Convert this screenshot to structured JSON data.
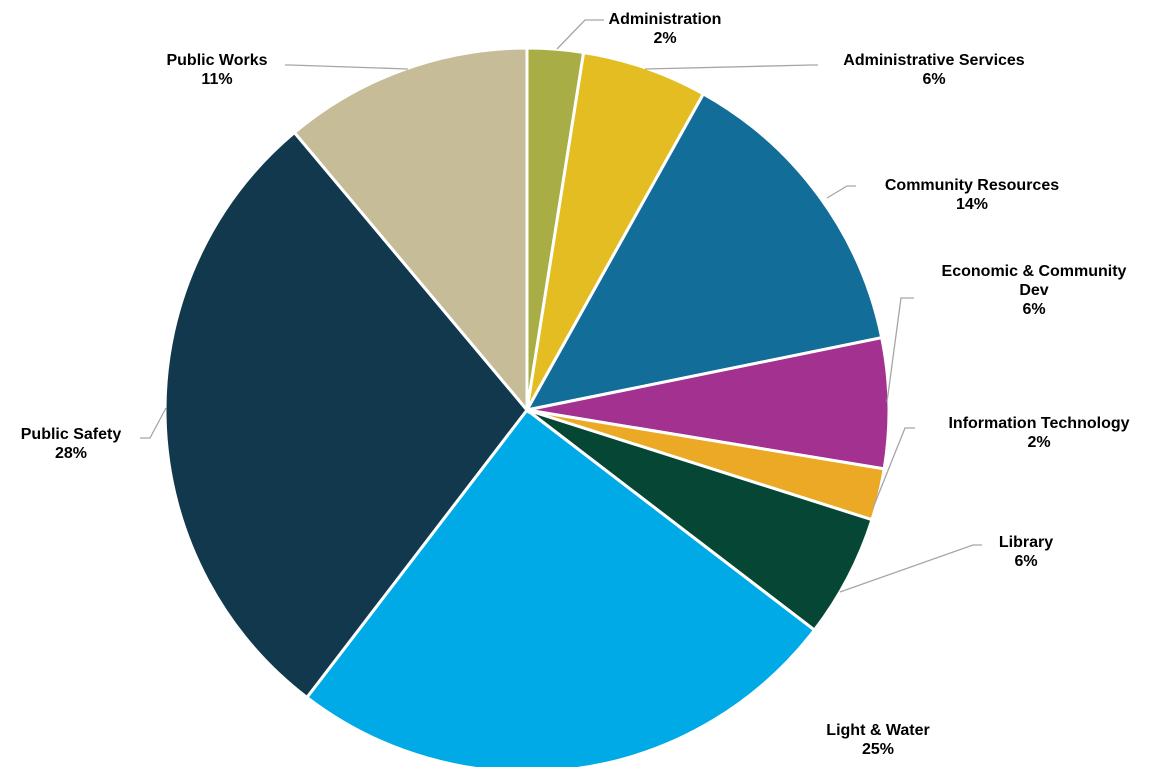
{
  "chart_data": {
    "type": "pie",
    "title": "",
    "slices": [
      {
        "name": "Administration",
        "name_lines": [
          "Administration"
        ],
        "percent_label": "2%",
        "value": 2.5,
        "color": "#a9ad45"
      },
      {
        "name": "Administrative Services",
        "name_lines": [
          "Administrative Services"
        ],
        "percent_label": "6%",
        "value": 5.6,
        "color": "#e3bd22"
      },
      {
        "name": "Community Resources",
        "name_lines": [
          "Community Resources"
        ],
        "percent_label": "14%",
        "value": 13.7,
        "color": "#126d99"
      },
      {
        "name": "Economic & Community Dev",
        "name_lines": [
          "Economic & Community",
          "Dev"
        ],
        "percent_label": "6%",
        "value": 5.8,
        "color": "#a3318f"
      },
      {
        "name": "Information Technology",
        "name_lines": [
          "Information Technology"
        ],
        "percent_label": "2%",
        "value": 2.3,
        "color": "#eba925"
      },
      {
        "name": "Library",
        "name_lines": [
          "Library"
        ],
        "percent_label": "6%",
        "value": 5.5,
        "color": "#054734"
      },
      {
        "name": "Light & Water",
        "name_lines": [
          "Light & Water"
        ],
        "percent_label": "25%",
        "value": 25.0,
        "color": "#00aae6"
      },
      {
        "name": "Public Safety",
        "name_lines": [
          "Public Safety"
        ],
        "percent_label": "28%",
        "value": 28.5,
        "color": "#12384d"
      },
      {
        "name": "Public Works",
        "name_lines": [
          "Public Works"
        ],
        "percent_label": "11%",
        "value": 11.1,
        "color": "#c6bc98"
      }
    ],
    "start_angle_deg": 0,
    "direction": "clockwise",
    "legend": "none",
    "data_labels": "outside with leader lines"
  }
}
